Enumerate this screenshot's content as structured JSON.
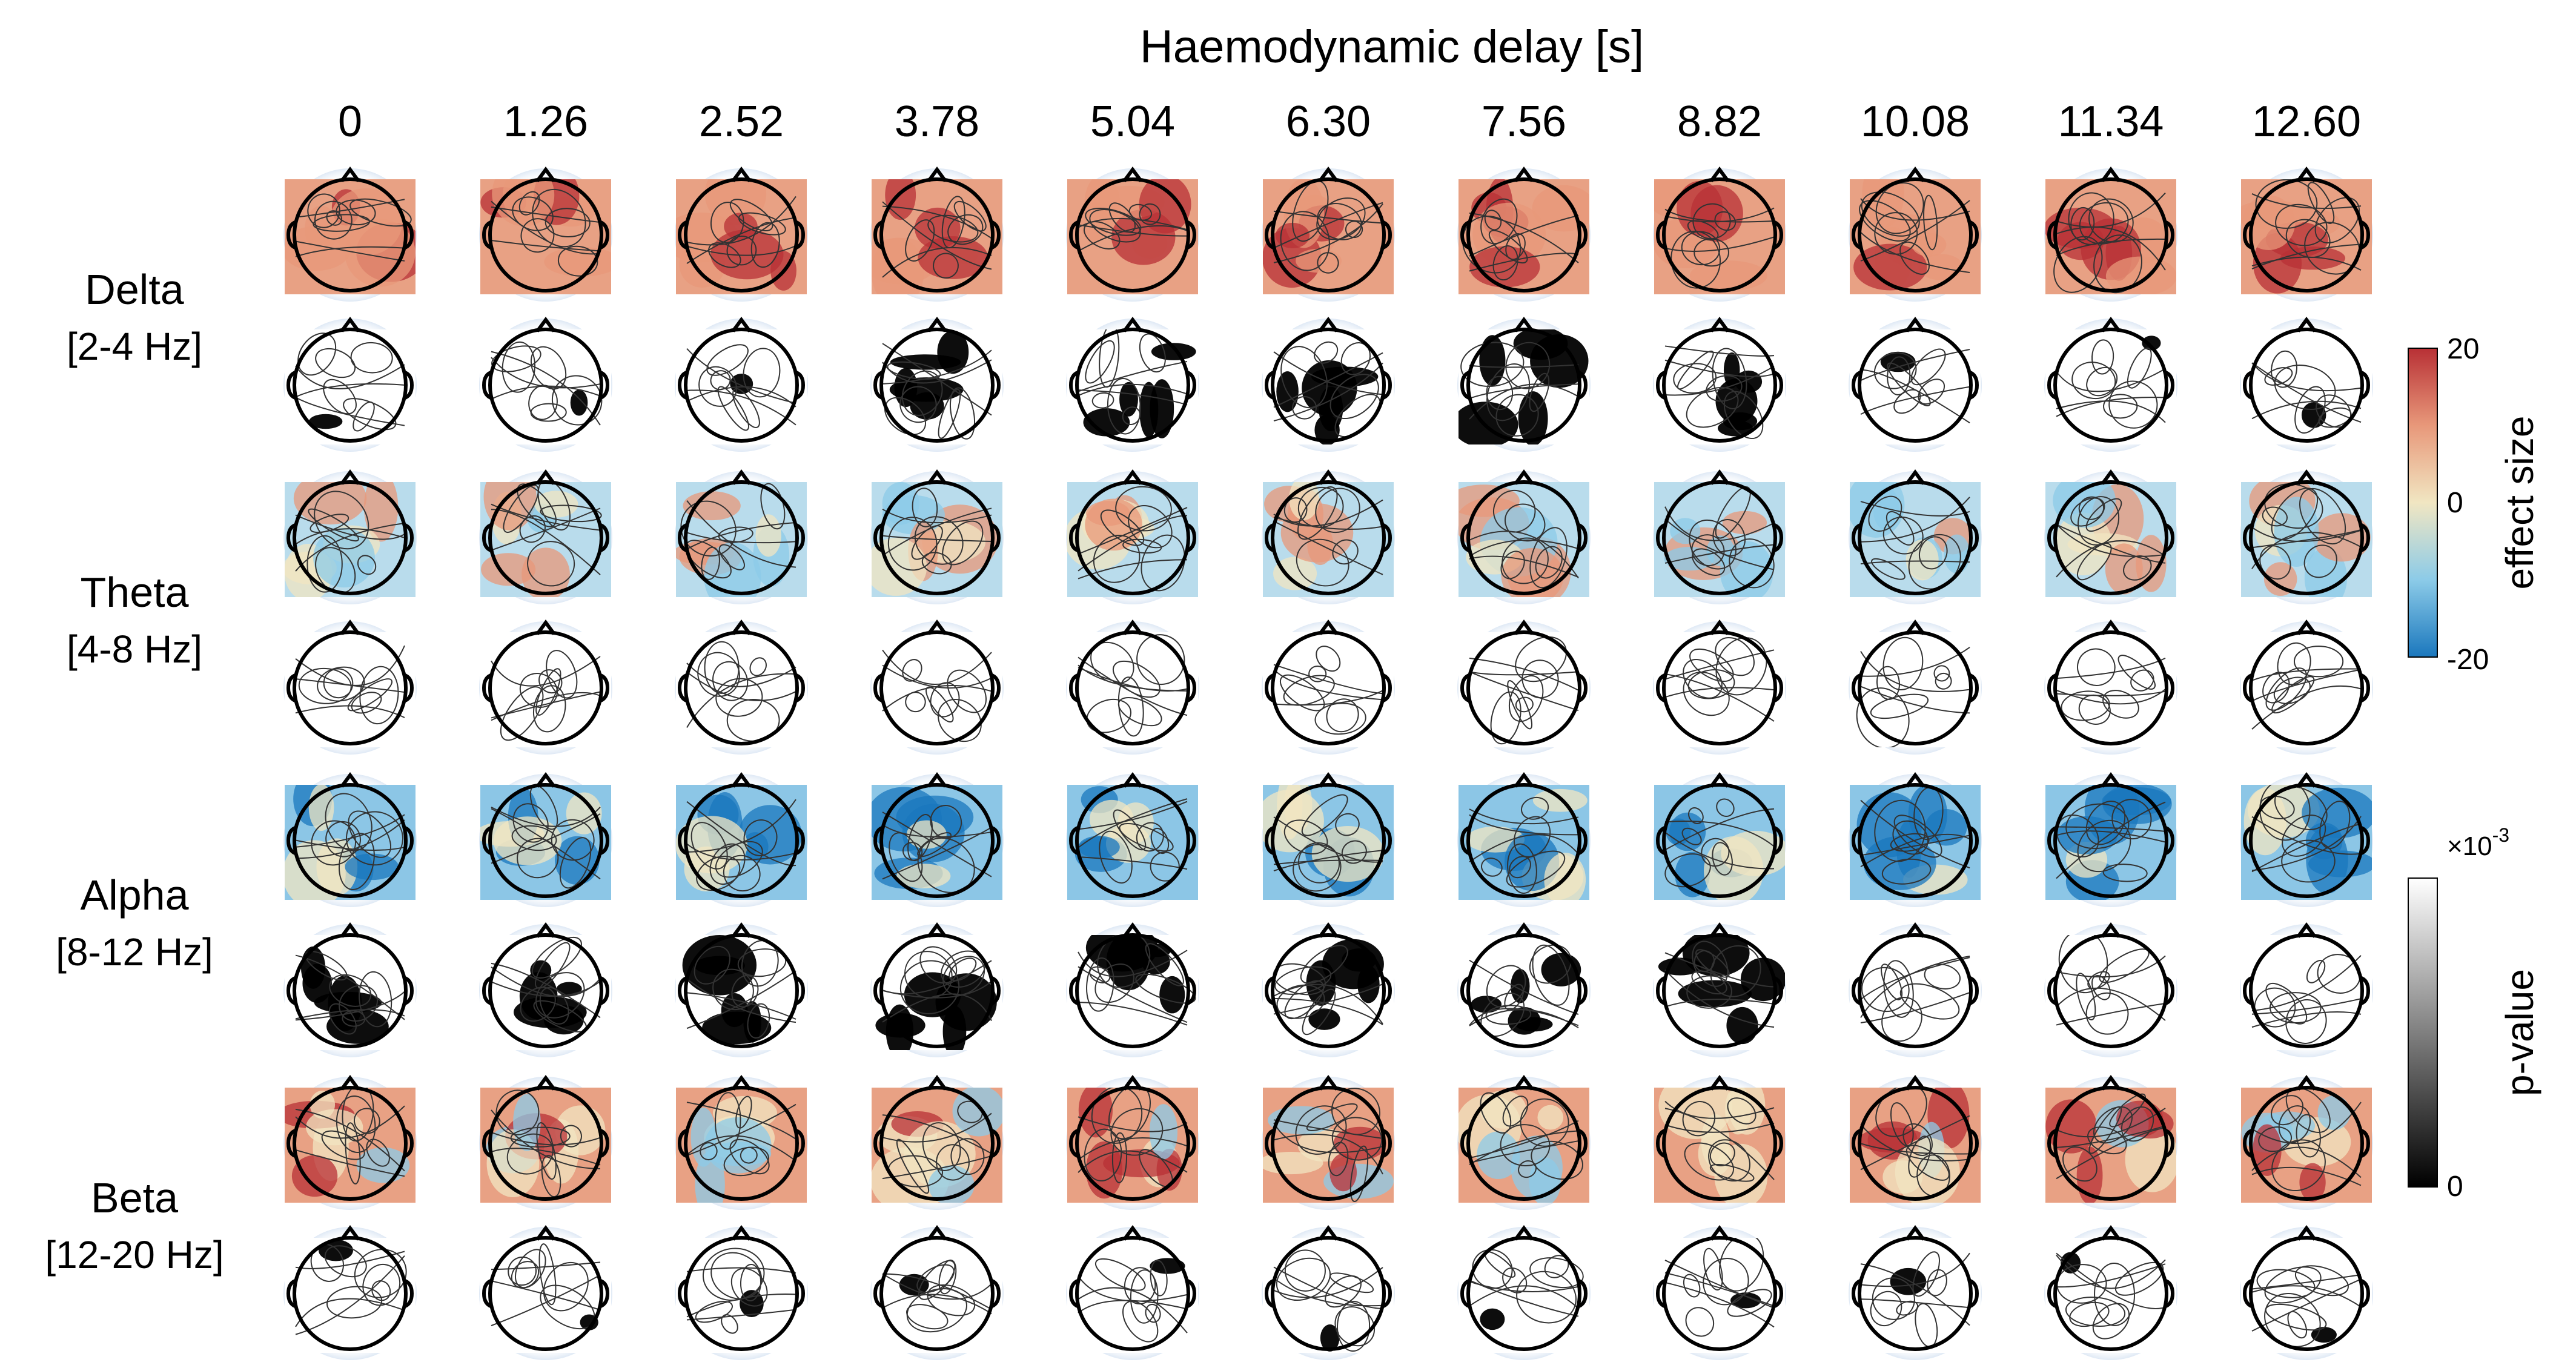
{
  "figure": {
    "column_header_title": "Haemodynamic delay [s]",
    "delays": [
      "0",
      "1.26",
      "2.52",
      "3.78",
      "5.04",
      "6.30",
      "7.56",
      "8.82",
      "10.08",
      "11.34",
      "12.60"
    ],
    "bands": [
      {
        "name": "Delta",
        "range": "[2-4 Hz]"
      },
      {
        "name": "Theta",
        "range": "[4-8 Hz]"
      },
      {
        "name": "Alpha",
        "range": "[8-12 Hz]"
      },
      {
        "name": "Beta",
        "range": "[12-20 Hz]"
      }
    ],
    "row_types": [
      "effect-size",
      "p-value"
    ]
  },
  "colorbars": {
    "effect": {
      "label": "effect size",
      "ticks": [
        "20",
        "0",
        "-20"
      ],
      "range": [
        -20,
        20
      ],
      "colors": [
        "#1a77bd",
        "#8ccbe8",
        "#f1e6c2",
        "#e8987a",
        "#b83035"
      ]
    },
    "pvalue": {
      "label": "p-value",
      "multiplier": "×10",
      "exponent": "-3",
      "ticks": [
        "0"
      ],
      "colors": [
        "#000000",
        "#ffffff"
      ]
    }
  },
  "colors": {
    "head_outline": "#000000",
    "contour": "#333333",
    "halo": "#dfe9f5"
  }
}
